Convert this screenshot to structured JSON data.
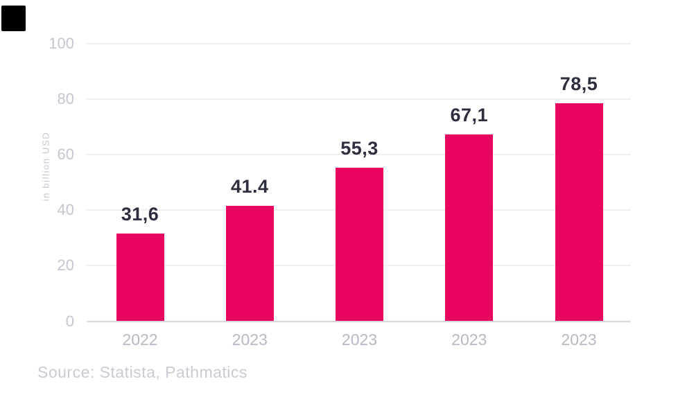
{
  "chart_data": {
    "type": "bar",
    "title": "",
    "ylabel": "in billion USD",
    "xlabel": "",
    "categories": [
      "2022",
      "2023",
      "2023",
      "2023",
      "2023"
    ],
    "values": [
      31.6,
      41.4,
      55.3,
      67.1,
      78.5
    ],
    "value_labels": [
      "31,6",
      "41.4",
      "55,3",
      "67,1",
      "78,5"
    ],
    "ylim": [
      0,
      100
    ],
    "yticks": [
      0,
      20,
      40,
      60,
      80,
      100
    ],
    "grid": "horizontal",
    "legend": "none"
  },
  "colors": {
    "bar": "#e8055f",
    "value_label": "#2d2f3f",
    "axis_text": "#c3c6d0",
    "x_axis_text": "#b6b9c3",
    "gridline": "#f0f0f3",
    "baseline": "#d6d8dd",
    "source_text": "#c8cbd3",
    "logo_square": "#000000"
  },
  "source": {
    "text": "Source: Statista, Pathmatics"
  }
}
